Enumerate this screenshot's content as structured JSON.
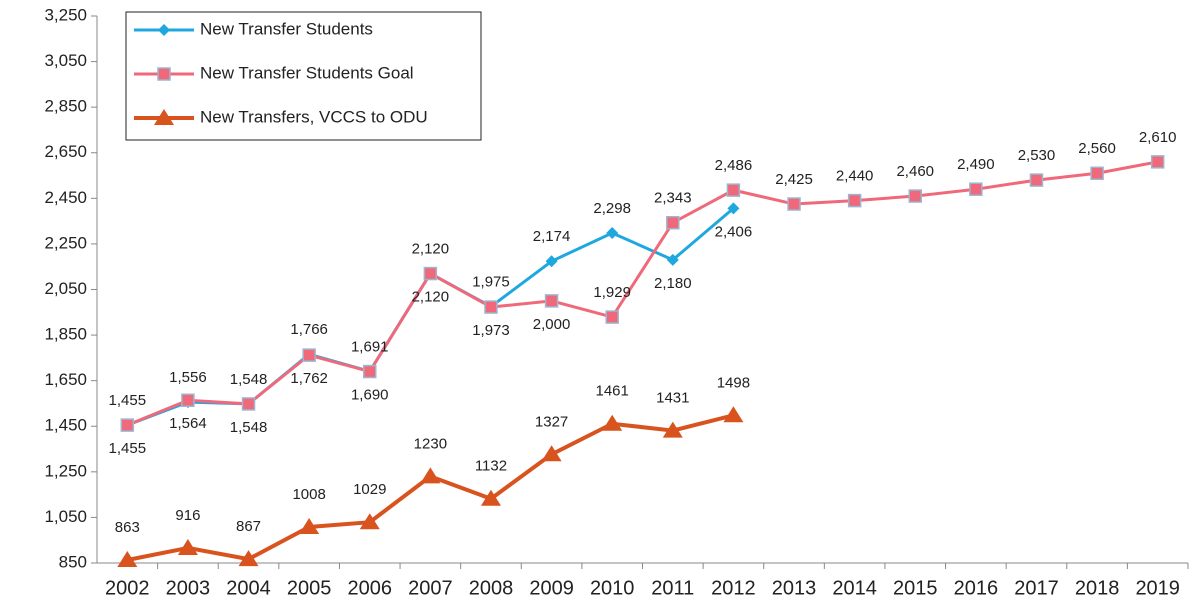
{
  "chart_data": {
    "type": "line",
    "categories": [
      "2002",
      "2003",
      "2004",
      "2005",
      "2006",
      "2007",
      "2008",
      "2009",
      "2010",
      "2011",
      "2012",
      "2013",
      "2014",
      "2015",
      "2016",
      "2017",
      "2018",
      "2019"
    ],
    "series": [
      {
        "name": "New Transfer Students",
        "color": "#1fa8e0",
        "marker": "diamond",
        "values": [
          1455,
          1556,
          1548,
          1766,
          1691,
          2120,
          1975,
          2174,
          2298,
          2180,
          2406,
          null,
          null,
          null,
          null,
          null,
          null,
          null
        ],
        "value_labels": [
          "1,455",
          "1,556",
          "1,548",
          "1,766",
          "1,691",
          "2,120",
          "1,975",
          "2,174",
          "2,298",
          "2,180",
          "2,406",
          null,
          null,
          null,
          null,
          null,
          null,
          null
        ]
      },
      {
        "name": "New Transfer Students Goal",
        "color": "#f0697a",
        "marker": "square",
        "values": [
          1455,
          1564,
          1548,
          1762,
          1690,
          2120,
          1973,
          2000,
          1929,
          2343,
          2486,
          2425,
          2440,
          2460,
          2490,
          2530,
          2560,
          2610
        ],
        "value_labels": [
          "1,455",
          "1,564",
          "1,548",
          "1,762",
          "1,690",
          "2,120",
          "1,973",
          "2,000",
          "1,929",
          "2,343",
          "2,486",
          "2,425",
          "2,440",
          "2,460",
          "2,490",
          "2,530",
          "2,560",
          "2,610"
        ]
      },
      {
        "name": "New Transfers, VCCS to ODU",
        "color": "#d9531e",
        "marker": "triangle",
        "values": [
          863,
          916,
          867,
          1008,
          1029,
          1230,
          1132,
          1327,
          1461,
          1431,
          1498,
          null,
          null,
          null,
          null,
          null,
          null,
          null
        ]
      }
    ],
    "ylim": [
      850,
      3250
    ],
    "yticks": [
      850,
      {
        "value": 1050,
        "label": "1,050"
      },
      {
        "value": 1250,
        "label": "1,250"
      },
      {
        "value": 1450,
        "label": "1,450"
      },
      {
        "value": 1650,
        "label": "1,650"
      },
      {
        "value": 1850,
        "label": "1,850"
      },
      {
        "value": 2050,
        "label": "2,050"
      },
      {
        "value": 2250,
        "label": "2,250"
      },
      {
        "value": 2450,
        "label": "2,450"
      },
      {
        "value": 2650,
        "label": "2,650"
      },
      {
        "value": 2850,
        "label": "2,850"
      },
      {
        "value": 3050,
        "label": "3,050"
      },
      {
        "value": 3250,
        "label": "3,250"
      }
    ],
    "grid": false,
    "legend": "top-left"
  }
}
